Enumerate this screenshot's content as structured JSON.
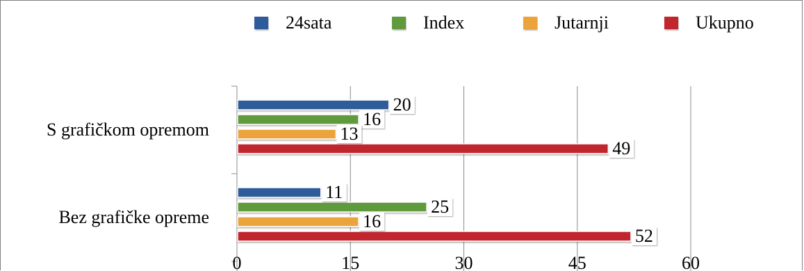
{
  "chart_data": {
    "type": "bar",
    "orientation": "horizontal",
    "categories": [
      "S grafičkom opremom",
      "Bez grafičke opreme"
    ],
    "series": [
      {
        "name": "24sata",
        "color": "#2e5b9a",
        "values": [
          20,
          11
        ]
      },
      {
        "name": "Index",
        "color": "#5e9a3d",
        "values": [
          16,
          25
        ]
      },
      {
        "name": "Jutarnji",
        "color": "#eba33b",
        "values": [
          13,
          16
        ]
      },
      {
        "name": "Ukupno",
        "color": "#c1282e",
        "values": [
          49,
          52
        ]
      }
    ],
    "xlim": [
      0,
      60
    ],
    "xticks": [
      "0",
      "15",
      "30",
      "45",
      "60"
    ],
    "grid": "vertical",
    "legend": "top",
    "data_labels": true
  }
}
